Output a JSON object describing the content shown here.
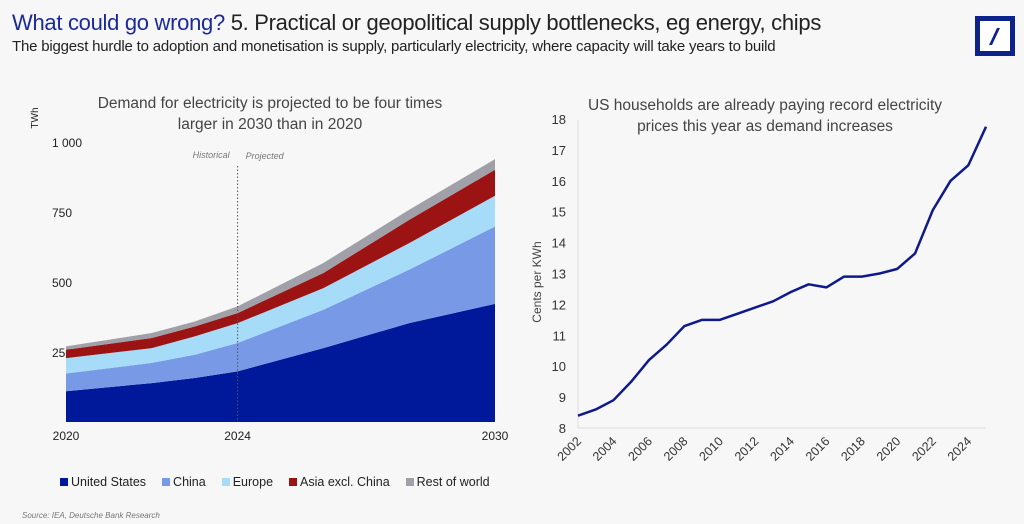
{
  "header": {
    "title_highlight": "What could go wrong?",
    "title_rest": " 5. Practical or geopolitical supply bottlenecks, eg energy, chips",
    "subtitle": "The biggest hurdle to adoption and monetisation is supply, particularly electricity, where capacity will take years to build"
  },
  "logo": {
    "name": "deutsche-bank-logo",
    "color": "#0c2389"
  },
  "source": "Source: IEA, Deutsche Bank Research",
  "chart_data": [
    {
      "type": "area",
      "stacked": true,
      "title": "Demand for electricity is projected to be four times larger in 2030 than in 2020",
      "ylabel": "TWh",
      "ylim": [
        0,
        1000
      ],
      "yticks": [
        250,
        500,
        750,
        1000
      ],
      "ytick_labels": [
        "250",
        "500",
        "750",
        "1 000"
      ],
      "xticks": [
        "2020",
        "2024",
        "2030"
      ],
      "annotations": {
        "divider_year": 2024,
        "left": "Historical",
        "right": "Projected"
      },
      "legend": "bottom",
      "x": [
        2020,
        2022,
        2023,
        2024,
        2026,
        2028,
        2030
      ],
      "series": [
        {
          "name": "United States",
          "color": "#00189a",
          "values": [
            110,
            139,
            157,
            181,
            264,
            353,
            422
          ]
        },
        {
          "name": "China",
          "color": "#7799e6",
          "values": [
            63,
            72,
            83,
            101,
            137,
            191,
            276
          ]
        },
        {
          "name": "Europe",
          "color": "#a6dcf7",
          "values": [
            55,
            53,
            66,
            71,
            77,
            95,
            110
          ]
        },
        {
          "name": "Asia excl. China",
          "color": "#9b1313",
          "values": [
            30,
            36,
            35,
            36,
            54,
            83,
            93
          ]
        },
        {
          "name": "Rest of world",
          "color": "#a0a0a8",
          "values": [
            12,
            18,
            18,
            24,
            36,
            36,
            38
          ]
        }
      ]
    },
    {
      "type": "line",
      "title": "US households are already paying record electricity prices this year as demand increases",
      "ylabel": "Cents per KWh",
      "ylim": [
        8,
        18
      ],
      "yticks": [
        8,
        9,
        10,
        11,
        12,
        13,
        14,
        15,
        16,
        17,
        18
      ],
      "xticks": [
        "2002",
        "2004",
        "2006",
        "2008",
        "2010",
        "2012",
        "2014",
        "2016",
        "2018",
        "2020",
        "2022",
        "2024"
      ],
      "color": "#0e1a8a",
      "x": [
        2002,
        2003,
        2004,
        2005,
        2006,
        2007,
        2008,
        2009,
        2010,
        2011,
        2012,
        2013,
        2014,
        2015,
        2016,
        2017,
        2018,
        2019,
        2020,
        2021,
        2022,
        2023,
        2024,
        2025
      ],
      "values": [
        8.4,
        8.6,
        8.9,
        9.5,
        10.2,
        10.7,
        11.3,
        11.5,
        11.5,
        11.7,
        11.9,
        12.1,
        12.4,
        12.65,
        12.55,
        12.9,
        12.9,
        13.0,
        13.15,
        13.65,
        15.05,
        16.0,
        16.5,
        17.75
      ]
    }
  ]
}
